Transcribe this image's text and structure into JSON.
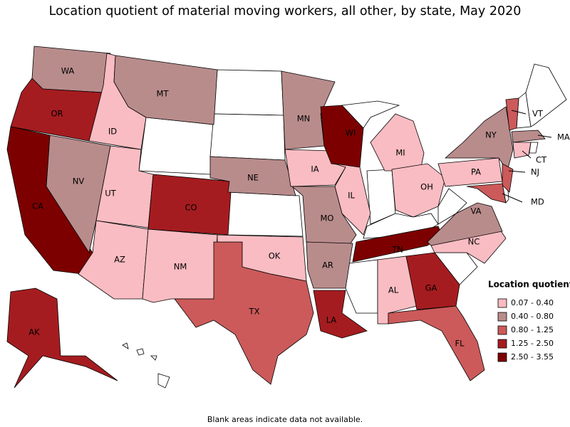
{
  "title": "Location quotient of material moving workers, all other, by state, May 2020",
  "legend": {
    "title": "Location quotient",
    "items": [
      {
        "label": "0.07 - 0.40",
        "color": "#f9bcc2"
      },
      {
        "label": "0.40 - 0.80",
        "color": "#b98c8c"
      },
      {
        "label": "0.80 - 1.25",
        "color": "#cc5a5a"
      },
      {
        "label": "1.25 - 2.50",
        "color": "#a51c20"
      },
      {
        "label": "2.50 - 3.55",
        "color": "#7d0000"
      }
    ]
  },
  "states": [
    {
      "label": "WA",
      "color": "#b98c8c"
    },
    {
      "label": "OR",
      "color": "#a51c20"
    },
    {
      "label": "CA",
      "color": "#7d0000"
    },
    {
      "label": "ID",
      "color": "#f9bcc2"
    },
    {
      "label": "NV",
      "color": "#b98c8c"
    },
    {
      "label": "UT",
      "color": "#f9bcc2"
    },
    {
      "label": "AZ",
      "color": "#f9bcc2"
    },
    {
      "label": "MT",
      "color": "#b98c8c"
    },
    {
      "label": "CO",
      "color": "#a51c20"
    },
    {
      "label": "NM",
      "color": "#f9bcc2"
    },
    {
      "label": "TX",
      "color": "#cc5a5a"
    },
    {
      "label": "OK",
      "color": "#f9bcc2"
    },
    {
      "label": "NE",
      "color": "#b98c8c"
    },
    {
      "label": "IA",
      "color": "#f9bcc2"
    },
    {
      "label": "MN",
      "color": "#b98c8c"
    },
    {
      "label": "WI",
      "color": "#7d0000"
    },
    {
      "label": "IL",
      "color": "#f9bcc2"
    },
    {
      "label": "MO",
      "color": "#b98c8c"
    },
    {
      "label": "AR",
      "color": "#b98c8c"
    },
    {
      "label": "LA",
      "color": "#a51c20"
    },
    {
      "label": "MI",
      "color": "#f9bcc2"
    },
    {
      "label": "OH",
      "color": "#f9bcc2"
    },
    {
      "label": "TN",
      "color": "#7d0000"
    },
    {
      "label": "AL",
      "color": "#f9bcc2"
    },
    {
      "label": "GA",
      "color": "#a51c20"
    },
    {
      "label": "FL",
      "color": "#cc5a5a"
    },
    {
      "label": "NC",
      "color": "#f9bcc2"
    },
    {
      "label": "VA",
      "color": "#b98c8c"
    },
    {
      "label": "PA",
      "color": "#f9bcc2"
    },
    {
      "label": "NY",
      "color": "#b98c8c"
    },
    {
      "label": "VT",
      "color": "#cc5a5a"
    },
    {
      "label": "MA",
      "color": "#b98c8c"
    },
    {
      "label": "CT",
      "color": "#f9bcc2"
    },
    {
      "label": "NJ",
      "color": "#cc5a5a"
    },
    {
      "label": "MD",
      "color": "#cc5a5a"
    },
    {
      "label": "AK",
      "color": "#a51c20"
    }
  ],
  "footnote": "Blank areas indicate data not available."
}
